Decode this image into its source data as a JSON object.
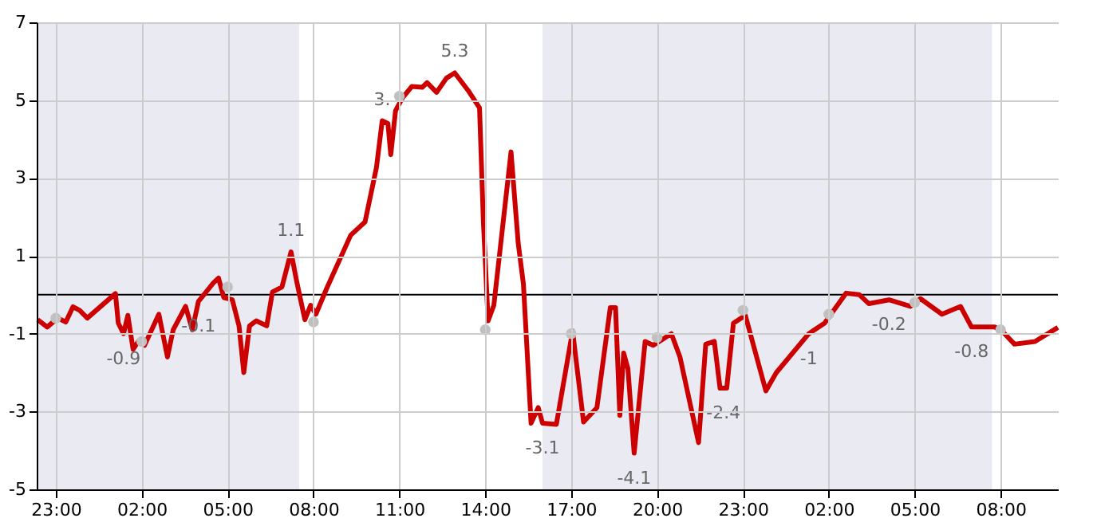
{
  "chart_data": {
    "type": "line",
    "xlim": [
      "--01-01T22:20",
      "--01-03T10:00"
    ],
    "ylim": [
      -5,
      7
    ],
    "xticks": [
      {
        "value": "--01-01T23:00",
        "label": "23:00"
      },
      {
        "value": "--01-02T02:00",
        "label": "02:00"
      },
      {
        "value": "--01-02T05:00",
        "label": "05:00"
      },
      {
        "value": "--01-02T08:00",
        "label": "08:00"
      },
      {
        "value": "--01-02T11:00",
        "label": "11:00"
      },
      {
        "value": "--01-02T14:00",
        "label": "14:00"
      },
      {
        "value": "--01-02T17:00",
        "label": "17:00"
      },
      {
        "value": "--01-02T20:00",
        "label": "20:00"
      },
      {
        "value": "--01-02T23:00",
        "label": "23:00"
      },
      {
        "value": "--01-03T02:00",
        "label": "02:00"
      },
      {
        "value": "--01-03T05:00",
        "label": "05:00"
      },
      {
        "value": "--01-03T08:00",
        "label": "08:00"
      }
    ],
    "yticks": [
      -5,
      -3,
      -1,
      1,
      3,
      5,
      7
    ],
    "grid": true,
    "line_style": "solid",
    "series": [
      {
        "color": "#cc0000",
        "x": [
          "--01-01T22:22",
          "--01-01T22:42",
          "--01-01T23:04",
          "--01-01T23:21",
          "--01-01T23:36",
          "--01-01T23:50",
          "--01-02T00:06",
          "--01-02T01:05",
          "--01-02T01:11",
          "--01-02T01:22",
          "--01-02T01:31",
          "--01-02T01:42",
          "--01-02T01:53",
          "--01-02T02:06",
          "--01-02T02:36",
          "--01-02T02:54",
          "--01-02T03:06",
          "--01-02T03:32",
          "--01-02T03:46",
          "--01-02T03:59",
          "--01-02T04:30",
          "--01-02T04:41",
          "--01-02T04:52",
          "--01-02T05:10",
          "--01-02T05:24",
          "--01-02T05:34",
          "--01-02T05:46",
          "--01-02T06:00",
          "--01-02T06:22",
          "--01-02T06:34",
          "--01-02T06:54",
          "--01-02T07:13",
          "--01-02T07:25",
          "--01-02T07:42",
          "--01-02T07:54",
          "--01-02T08:05",
          "--01-02T08:28",
          "--01-02T09:18",
          "--01-02T09:48",
          "--01-02T10:12",
          "--01-02T10:24",
          "--01-02T10:36",
          "--01-02T10:42",
          "--01-02T10:52",
          "--01-02T11:06",
          "--01-02T11:26",
          "--01-02T11:48",
          "--01-02T11:58",
          "--01-02T12:18",
          "--01-02T12:39",
          "--01-02T12:56",
          "--01-02T13:24",
          "--01-02T13:48",
          "--01-02T13:56",
          "--01-02T14:06",
          "--01-02T14:18",
          "--01-02T14:54",
          "--01-02T15:09",
          "--01-02T15:20",
          "--01-02T15:36",
          "--01-02T15:51",
          "--01-02T16:00",
          "--01-02T16:29",
          "--01-02T17:03",
          "--01-02T17:26",
          "--01-02T17:54",
          "--01-02T18:22",
          "--01-02T18:33",
          "--01-02T18:42",
          "--01-02T18:50",
          "--01-02T18:59",
          "--01-02T19:12",
          "--01-02T19:35",
          "--01-02T19:52",
          "--01-02T20:30",
          "--01-02T20:48",
          "--01-02T21:27",
          "--01-02T21:42",
          "--01-02T22:00",
          "--01-02T22:12",
          "--01-02T22:26",
          "--01-02T22:40",
          "--01-02T23:05",
          "--01-02T23:48",
          "--01-03T00:10",
          "--01-03T01:18",
          "--01-03T01:51",
          "--01-03T02:36",
          "--01-03T03:04",
          "--01-03T03:24",
          "--01-03T04:06",
          "--01-03T04:51",
          "--01-03T05:12",
          "--01-03T05:57",
          "--01-03T06:36",
          "--01-03T06:59",
          "--01-03T07:48",
          "--01-03T08:06",
          "--01-03T08:29",
          "--01-03T09:12",
          "--01-03T10:00"
        ],
        "values": [
          -0.64,
          -0.83,
          -0.6,
          -0.7,
          -0.31,
          -0.4,
          -0.6,
          0.03,
          -0.73,
          -1.0,
          -0.53,
          -1.4,
          -1.2,
          -1.3,
          -0.5,
          -1.6,
          -0.9,
          -0.3,
          -0.9,
          -0.17,
          0.3,
          0.43,
          -0.07,
          -0.13,
          -0.8,
          -2.0,
          -0.8,
          -0.67,
          -0.8,
          0.07,
          0.2,
          1.1,
          0.33,
          -0.64,
          -0.27,
          -0.5,
          0.17,
          1.53,
          1.87,
          3.27,
          4.47,
          4.4,
          3.6,
          4.73,
          5.05,
          5.35,
          5.33,
          5.45,
          5.2,
          5.57,
          5.7,
          5.25,
          4.8,
          1.9,
          -0.67,
          -0.27,
          3.67,
          1.33,
          0.27,
          -3.3,
          -2.9,
          -3.3,
          -3.33,
          -0.93,
          -3.27,
          -2.9,
          -0.33,
          -0.33,
          -3.1,
          -1.5,
          -1.9,
          -4.07,
          -1.2,
          -1.3,
          -1.0,
          -1.6,
          -3.8,
          -1.27,
          -1.2,
          -2.4,
          -2.4,
          -0.73,
          -0.53,
          -2.47,
          -2.0,
          -1.0,
          -0.73,
          0.04,
          0,
          -0.23,
          -0.13,
          -0.3,
          -0.1,
          -0.5,
          -0.3,
          -0.83,
          -0.83,
          -0.97,
          -1.27,
          -1.2,
          -0.84
        ]
      },
      {
        "type": "scatter",
        "marker": "circle",
        "color": "#c0c0c0",
        "x": [
          "--01-01T23:00",
          "--01-02T02:00",
          "--01-02T05:00",
          "--01-02T08:00",
          "--01-02T11:00",
          "--01-02T14:00",
          "--01-02T17:00",
          "--01-02T20:00",
          "--01-02T23:00",
          "--01-03T02:00",
          "--01-03T05:00",
          "--01-03T08:00"
        ],
        "values": [
          -0.6,
          -1.2,
          0.2,
          -0.7,
          5.1,
          -0.9,
          -1.0,
          -1.1,
          -0.4,
          -0.5,
          -0.2,
          -0.9
        ]
      }
    ],
    "ref_lines": [
      {
        "axis": "y",
        "value": 0,
        "color": "#000000"
      }
    ],
    "bands": [
      {
        "axis": "x",
        "from": "--01-01T22:20",
        "to": "--01-02T07:30",
        "color": "#eaebf2"
      },
      {
        "axis": "x",
        "from": "--01-02T16:00",
        "to": "--01-03T07:42",
        "color": "#eaebf2"
      }
    ],
    "annotations": [
      {
        "text": "-0.9",
        "x": "--01-02T01:22",
        "y": -1.0
      },
      {
        "text": "-0.1",
        "x": "--01-02T03:59",
        "y": -0.17
      },
      {
        "text": "1.1",
        "x": "--01-02T07:13",
        "y": 1.1
      },
      {
        "text": "3.",
        "x": "--01-02T10:24",
        "y": 4.47
      },
      {
        "text": "5.3",
        "x": "--01-02T12:56",
        "y": 5.7
      },
      {
        "text": "-3.1",
        "x": "--01-02T16:00",
        "y": -3.3
      },
      {
        "text": "-4.1",
        "x": "--01-02T19:12",
        "y": -4.07
      },
      {
        "text": "-2.4",
        "x": "--01-02T22:19",
        "y": -2.4
      },
      {
        "text": "-1",
        "x": "--01-03T01:18",
        "y": -1.0
      },
      {
        "text": "-0.2",
        "x": "--01-03T04:06",
        "y": -0.13
      },
      {
        "text": "-0.8",
        "x": "--01-03T06:59",
        "y": -0.83
      }
    ]
  }
}
